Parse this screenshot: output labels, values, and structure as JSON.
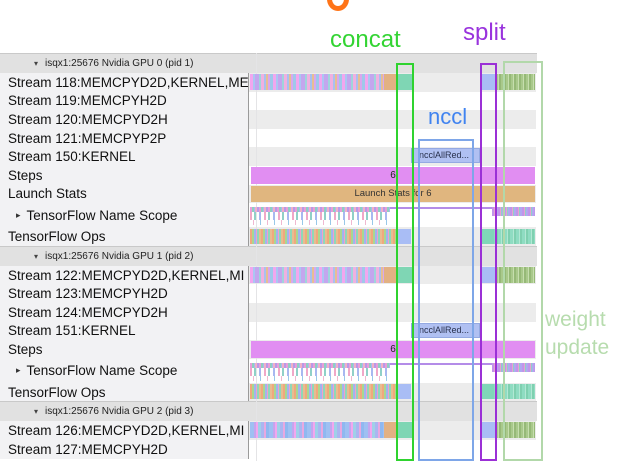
{
  "annotations": {
    "concat": {
      "text": "concat",
      "color": "#33d433"
    },
    "split": {
      "text": "split",
      "color": "#9933dd"
    },
    "nccl": {
      "text": "nccl",
      "color": "#4083f0"
    },
    "weight_update": {
      "lines": [
        "weight",
        "update"
      ],
      "color": "#b7dcae"
    }
  },
  "strings": {
    "steps_value": "6",
    "launch_value": "Launch Stats for 6",
    "nccl_kernel": "ncclAllRed..."
  },
  "colors": {
    "steps_bar": "#e18ef2",
    "launch_bar": "#e0b67f",
    "nccl_bar": "#b0c0f2",
    "annotation_green": "#2fd32f",
    "annotation_purple": "#9b30d6",
    "annotation_lightgreen": "#b2d8aa",
    "annotation_blue": "#7ea6e8"
  },
  "sections": [
    {
      "header": "isqx1:25676 Nvidia GPU 0 (pid 1)",
      "rows": [
        {
          "label": "Stream 118:MEMCPYD2D,KERNEL,ME",
          "kind": "kernel"
        },
        {
          "label": "Stream 119:MEMCPYH2D",
          "kind": "empty"
        },
        {
          "label": "Stream 120:MEMCPYD2H",
          "kind": "empty"
        },
        {
          "label": "Stream 121:MEMCPYP2P",
          "kind": "empty"
        },
        {
          "label": "Stream 150:KERNEL",
          "kind": "nccl"
        },
        {
          "label": "Steps",
          "kind": "steps"
        },
        {
          "label": "Launch Stats",
          "kind": "launch"
        },
        {
          "label": "TensorFlow Name Scope",
          "kind": "namescope",
          "expander": true
        },
        {
          "label": "TensorFlow Ops",
          "kind": "ops"
        }
      ]
    },
    {
      "header": "isqx1:25676 Nvidia GPU 1 (pid 2)",
      "rows": [
        {
          "label": "Stream 122:MEMCPYD2D,KERNEL,MI",
          "kind": "kernel"
        },
        {
          "label": "Stream 123:MEMCPYH2D",
          "kind": "empty"
        },
        {
          "label": "Stream 124:MEMCPYD2H",
          "kind": "empty"
        },
        {
          "label": "Stream 151:KERNEL",
          "kind": "nccl"
        },
        {
          "label": "Steps",
          "kind": "steps"
        },
        {
          "label": "TensorFlow Name Scope",
          "kind": "namescope",
          "expander": true
        },
        {
          "label": "TensorFlow Ops",
          "kind": "ops"
        }
      ]
    },
    {
      "header": "isqx1:25676 Nvidia GPU 2 (pid 3)",
      "rows": [
        {
          "label": "Stream 126:MEMCPYD2D,KERNEL,MI",
          "kind": "kernel2"
        },
        {
          "label": "Stream 127:MEMCPYH2D",
          "kind": "empty"
        }
      ]
    }
  ]
}
